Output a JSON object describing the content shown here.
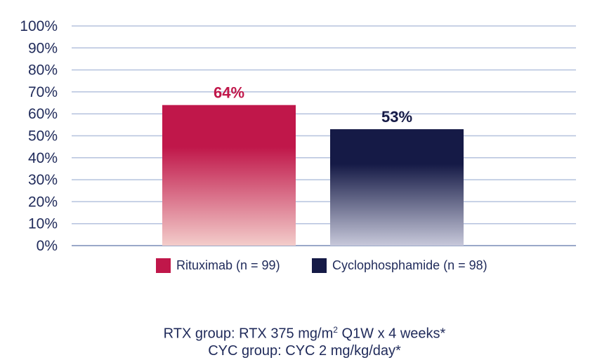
{
  "chart_data": {
    "type": "bar",
    "categories": [
      "Rituximab (n = 99)",
      "Cyclophosphamide (n = 98)"
    ],
    "values": [
      64,
      53
    ],
    "data_labels": [
      "64%",
      "53%"
    ],
    "ylim": [
      0,
      100
    ],
    "yticks": [
      "0%",
      "10%",
      "20%",
      "30%",
      "40%",
      "50%",
      "60%",
      "70%",
      "80%",
      "90%",
      "100%"
    ],
    "grid": true,
    "legend_placement": "bottom",
    "colors": [
      "#c0174a",
      "#151a46"
    ]
  },
  "legend": {
    "items": [
      {
        "label": "Rituximab (n = 99)",
        "color": "#c0174a"
      },
      {
        "label": "Cyclophosphamide (n = 98)",
        "color": "#151a46"
      }
    ]
  },
  "footnotes": {
    "line1_pre": "RTX group: RTX 375 mg/m",
    "line1_sup": "2",
    "line1_post": " Q1W x 4 weeks*",
    "line2": "CYC group: CYC 2 mg/kg/day*"
  }
}
